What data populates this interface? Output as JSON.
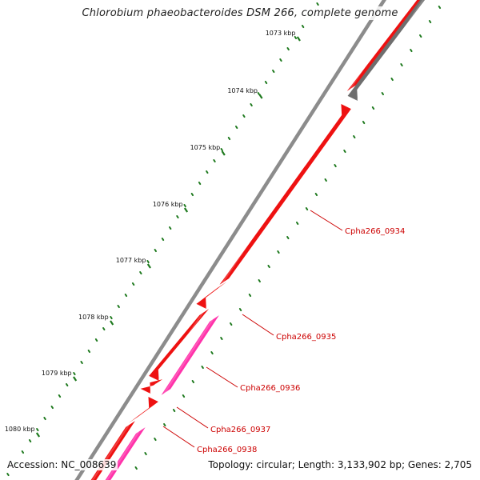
{
  "title": "Chlorobium phaeobacteroides DSM 266, complete genome",
  "footer": {
    "accession": "Accession: NC_008639",
    "summary": "Topology: circular; Length: 3,133,902 bp; Genes: 2,705"
  },
  "colors": {
    "backbone": "#8c8c8c",
    "forward_gene": "#ee1111",
    "reverse_gene": "#6e6e6e",
    "highlight_gene": "#ff33aa",
    "ticks": "#1f7a1f",
    "gene_label": "#cc0000"
  },
  "ticks": [
    {
      "label": "1073 kbp"
    },
    {
      "label": "1074 kbp"
    },
    {
      "label": "1075 kbp"
    },
    {
      "label": "1076 kbp"
    },
    {
      "label": "1077 kbp"
    },
    {
      "label": "1078 kbp"
    },
    {
      "label": "1079 kbp"
    },
    {
      "label": "1080 kbp"
    }
  ],
  "gene_labels": [
    {
      "text": "Cpha266_0934"
    },
    {
      "text": "Cpha266_0935"
    },
    {
      "text": "Cpha266_0936"
    },
    {
      "text": "Cpha266_0937"
    },
    {
      "text": "Cpha266_0938"
    }
  ]
}
